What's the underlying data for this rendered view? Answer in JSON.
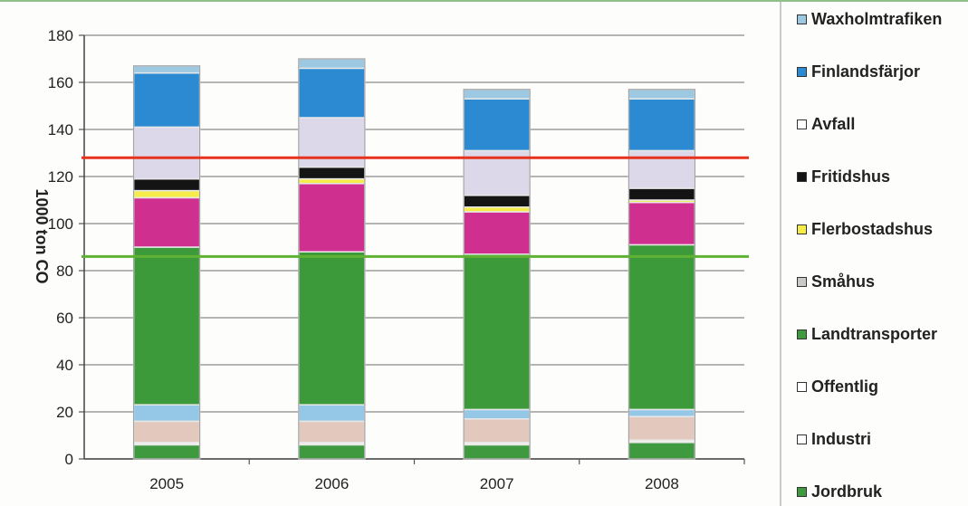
{
  "chart_data": {
    "type": "bar",
    "stacked": true,
    "categories": [
      "2005",
      "2006",
      "2007",
      "2008"
    ],
    "ylabel": "1000 ton CO",
    "ylim": [
      0,
      180
    ],
    "yticks": [
      0,
      20,
      40,
      60,
      80,
      100,
      120,
      140,
      160,
      180
    ],
    "grid": true,
    "legend_position": "right",
    "series": [
      {
        "name": "Jordbruk",
        "color": "#3f9a3f",
        "values": [
          6,
          6,
          6,
          7
        ]
      },
      {
        "name": "Industri",
        "color": "#f3f1ee",
        "values": [
          1,
          1,
          1,
          1
        ]
      },
      {
        "name": "Offentlig",
        "color": "#e3c8bd",
        "values": [
          9,
          9,
          10,
          10
        ]
      },
      {
        "name": "Landtransporter",
        "color": "#3c9a3a",
        "values": [
          0,
          0,
          0,
          0
        ]
      },
      {
        "name": "Småhus",
        "color": "#94c8e6",
        "values": [
          7,
          7,
          4,
          3
        ]
      },
      {
        "name": "Landtransporter",
        "color": "#3c9a3a",
        "values": [
          67,
          65,
          66,
          70
        ]
      },
      {
        "name": "Offentlig",
        "color": "#cf2f8e",
        "values": [
          21,
          29,
          18,
          18
        ]
      },
      {
        "name": "Flerbostadshus",
        "color": "#f5ec4a",
        "values": [
          3,
          2,
          2,
          1
        ]
      },
      {
        "name": "Fritidshus",
        "color": "#141414",
        "values": [
          5,
          5,
          5,
          5
        ]
      },
      {
        "name": "Avfall",
        "color": "#dcd8ea",
        "values": [
          22,
          21,
          19,
          16
        ]
      },
      {
        "name": "Finlandsfärjor",
        "color": "#2c8ad3",
        "values": [
          23,
          21,
          22,
          22
        ]
      },
      {
        "name": "Waxholmtrafiken",
        "color": "#9cc8e2",
        "values": [
          3,
          4,
          4,
          4
        ]
      }
    ],
    "reference_lines": [
      {
        "y": 128,
        "color": "#e8321e"
      },
      {
        "y": 86,
        "color": "#5fb233"
      }
    ]
  },
  "legend": {
    "items": [
      {
        "label": "Waxholmtrafiken",
        "color": "#9cc8e2",
        "icon": "square-icon"
      },
      {
        "label": "Finlandsfärjor",
        "color": "#2c8ad3",
        "icon": "square-icon"
      },
      {
        "label": "Avfall",
        "color": "#ffffff",
        "icon": "square-icon"
      },
      {
        "label": "Fritidshus",
        "color": "#141414",
        "icon": "square-icon"
      },
      {
        "label": "Flerbostadshus",
        "color": "#f5ec4a",
        "icon": "square-icon"
      },
      {
        "label": "Småhus",
        "color": "#c9c9c9",
        "icon": "square-icon"
      },
      {
        "label": "Landtransporter",
        "color": "#3f9a3f",
        "icon": "square-icon"
      },
      {
        "label": "Offentlig",
        "color": "#ffffff",
        "icon": "square-icon"
      },
      {
        "label": "Industri",
        "color": "#ffffff",
        "icon": "square-icon"
      },
      {
        "label": "Jordbruk",
        "color": "#3f9a3f",
        "icon": "square-icon"
      }
    ]
  }
}
